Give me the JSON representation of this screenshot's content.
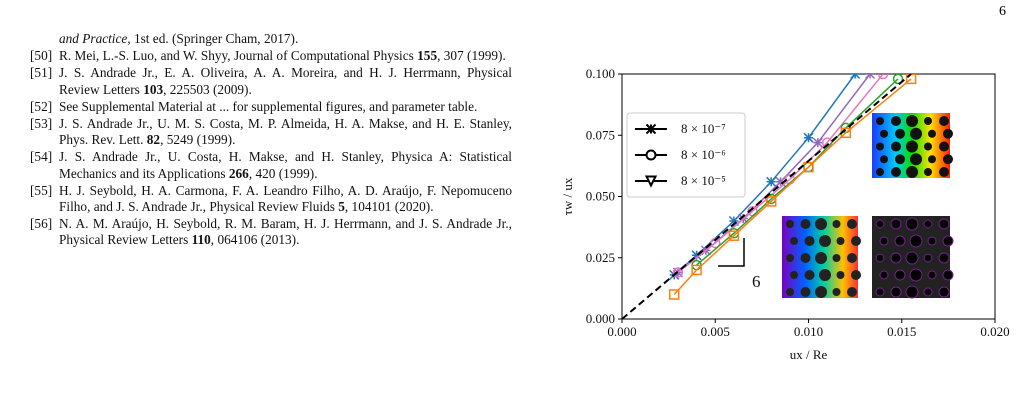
{
  "page_number": "6",
  "references": {
    "continuation": {
      "italic": "and Practice",
      "text": ", 1st ed. (Springer Cham, 2017)."
    },
    "items": [
      {
        "number": "[50]",
        "text": "R. Mei, L.-S. Luo, and W. Shyy, Journal of Computational Physics ",
        "volume": "155",
        "rest": ", 307 (1999)."
      },
      {
        "number": "[51]",
        "text": "J. S. Andrade Jr., E. A. Oliveira, A. A. Moreira, and H. J. Herrmann, Physical Review Letters ",
        "volume": "103",
        "rest": ", 225503 (2009)."
      },
      {
        "number": "[52]",
        "text": "See Supplemental Material at ... for supplemental figures, and parameter table."
      },
      {
        "number": "[53]",
        "text": "J. S. Andrade Jr., U. M. S. Costa, M. P. Almeida, H. A. Makse, and H. E. Stanley, Phys. Rev. Lett. ",
        "volume": "82",
        "rest": ", 5249 (1999)."
      },
      {
        "number": "[54]",
        "text": "J. S. Andrade Jr., U. Costa, H. Makse, and H. Stanley, Physica A: Statistical Mechanics and its Applications ",
        "volume": "266",
        "rest": ", 420 (1999)."
      },
      {
        "number": "[55]",
        "text": "H. J. Seybold, H. A. Carmona, F. A. Leandro Filho, A. D. Araújo, F. Nepomuceno Filho, and J. S. Andrade Jr., Physical Review Fluids ",
        "volume": "5",
        "rest": ", 104101 (2020)."
      },
      {
        "number": "[56]",
        "text": "N. A. M. Araújo, H. Seybold, R. M. Baram, H. J. Herrmann, and J. S. Andrade Jr., Physical Review Letters ",
        "volume": "110",
        "rest": ", 064106 (2013)."
      }
    ]
  },
  "chart_data": {
    "type": "line",
    "xlabel": "ux / Re",
    "ylabel": "τw / ux",
    "xlim": [
      0,
      0.02
    ],
    "ylim": [
      0,
      0.1
    ],
    "xticks": [
      {
        "value": 0,
        "label": "0.000"
      },
      {
        "value": 0.005,
        "label": "0.005"
      },
      {
        "value": 0.01,
        "label": "0.010"
      },
      {
        "value": 0.015,
        "label": "0.015"
      },
      {
        "value": 0.02,
        "label": "0.020"
      }
    ],
    "yticks": [
      {
        "value": 0,
        "label": "0.000"
      },
      {
        "value": 0.025,
        "label": "0.025"
      },
      {
        "value": 0.05,
        "label": "0.050"
      },
      {
        "value": 0.075,
        "label": "0.075"
      },
      {
        "value": 0.1,
        "label": "0.100"
      }
    ],
    "legend": [
      {
        "label": "8 × 10⁻⁷",
        "marker": "x"
      },
      {
        "label": "8 × 10⁻⁶",
        "marker": "o"
      },
      {
        "label": "8 × 10⁻⁵",
        "marker": "v"
      }
    ],
    "legend_position": "upper left",
    "series": [
      {
        "color": "#1f77b4",
        "marker": "x",
        "x": [
          0.0028,
          0.004,
          0.006,
          0.008,
          0.01,
          0.0125
        ],
        "values": [
          0.018,
          0.026,
          0.04,
          0.056,
          0.074,
          0.1
        ]
      },
      {
        "color": "#9467bd",
        "marker": "x",
        "x": [
          0.003,
          0.0045,
          0.0065,
          0.0085,
          0.0105,
          0.0133
        ],
        "values": [
          0.019,
          0.028,
          0.041,
          0.056,
          0.072,
          0.1
        ]
      },
      {
        "color": "#e377c2",
        "marker": "o",
        "x": [
          0.003,
          0.005,
          0.007,
          0.009,
          0.011,
          0.014
        ],
        "values": [
          0.019,
          0.031,
          0.044,
          0.057,
          0.072,
          0.1
        ]
      },
      {
        "color": "#2ca02c",
        "marker": "o",
        "x": [
          0.004,
          0.006,
          0.008,
          0.01,
          0.012,
          0.0148
        ],
        "values": [
          0.022,
          0.035,
          0.049,
          0.062,
          0.078,
          0.098
        ]
      },
      {
        "color": "#ff7f0e",
        "marker": "s",
        "x": [
          0.0028,
          0.004,
          0.006,
          0.008,
          0.01,
          0.012,
          0.0155
        ],
        "values": [
          0.01,
          0.02,
          0.034,
          0.048,
          0.062,
          0.076,
          0.098
        ]
      }
    ],
    "reference_line": {
      "x": [
        0,
        0.0155
      ],
      "values": [
        0,
        0.1
      ]
    },
    "slope_label": "6"
  }
}
